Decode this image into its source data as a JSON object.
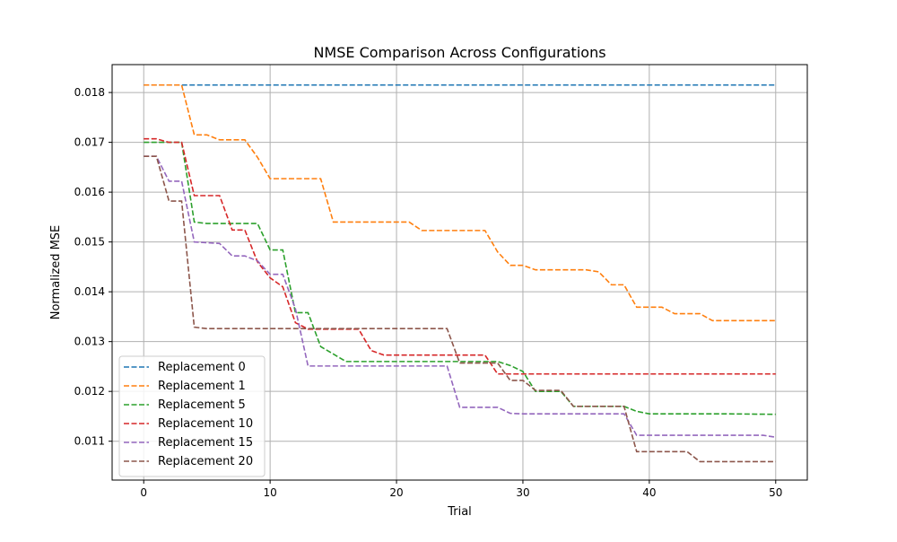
{
  "chart_data": {
    "type": "line",
    "title": "NMSE Comparison Across Configurations",
    "xlabel": "Trial",
    "ylabel": "Normalized MSE",
    "xlim": [
      -2.5,
      52.5
    ],
    "ylim": [
      0.01022,
      0.01856
    ],
    "x_ticks": [
      0,
      10,
      20,
      30,
      40,
      50
    ],
    "y_ticks": [
      0.011,
      0.012,
      0.013,
      0.014,
      0.015,
      0.016,
      0.017,
      0.018
    ],
    "grid": true,
    "legend_position": "lower-left",
    "line_style": "dashed",
    "series": [
      {
        "name": "Replacement 0",
        "color": "#1f77b4",
        "points": [
          [
            0,
            0.01815
          ],
          [
            50,
            0.01815
          ]
        ]
      },
      {
        "name": "Replacement 1",
        "color": "#ff7f0e",
        "points": [
          [
            0,
            0.01815
          ],
          [
            3,
            0.01815
          ],
          [
            4,
            0.01715
          ],
          [
            5,
            0.01715
          ],
          [
            6,
            0.01705
          ],
          [
            8,
            0.01705
          ],
          [
            9,
            0.0167
          ],
          [
            10,
            0.01627
          ],
          [
            14,
            0.01627
          ],
          [
            15,
            0.0154
          ],
          [
            21,
            0.0154
          ],
          [
            22,
            0.01523
          ],
          [
            27,
            0.01523
          ],
          [
            28,
            0.0148
          ],
          [
            29,
            0.01453
          ],
          [
            30,
            0.01453
          ],
          [
            31,
            0.01444
          ],
          [
            35,
            0.01444
          ],
          [
            36,
            0.0144
          ],
          [
            37,
            0.01414
          ],
          [
            38,
            0.01414
          ],
          [
            39,
            0.01369
          ],
          [
            41,
            0.01369
          ],
          [
            42,
            0.01356
          ],
          [
            44,
            0.01356
          ],
          [
            45,
            0.01342
          ],
          [
            50,
            0.01342
          ]
        ]
      },
      {
        "name": "Replacement 5",
        "color": "#2ca02c",
        "points": [
          [
            0,
            0.017
          ],
          [
            3,
            0.017
          ],
          [
            4,
            0.0154
          ],
          [
            5,
            0.01537
          ],
          [
            9,
            0.01537
          ],
          [
            10,
            0.01484
          ],
          [
            11,
            0.01484
          ],
          [
            12,
            0.01358
          ],
          [
            13,
            0.01358
          ],
          [
            14,
            0.0129
          ],
          [
            16,
            0.0126
          ],
          [
            28,
            0.0126
          ],
          [
            29,
            0.01252
          ],
          [
            30,
            0.0124
          ],
          [
            31,
            0.012
          ],
          [
            33,
            0.012
          ],
          [
            34,
            0.0117
          ],
          [
            38,
            0.0117
          ],
          [
            39,
            0.0116
          ],
          [
            40,
            0.01155
          ],
          [
            45,
            0.01155
          ],
          [
            46,
            0.01155
          ],
          [
            50,
            0.01154
          ]
        ]
      },
      {
        "name": "Replacement 10",
        "color": "#d62728",
        "points": [
          [
            0,
            0.01707
          ],
          [
            1,
            0.01707
          ],
          [
            2,
            0.017
          ],
          [
            3,
            0.017
          ],
          [
            4,
            0.01593
          ],
          [
            6,
            0.01593
          ],
          [
            7,
            0.01524
          ],
          [
            8,
            0.01524
          ],
          [
            9,
            0.0146
          ],
          [
            10,
            0.01428
          ],
          [
            11,
            0.0141
          ],
          [
            12,
            0.01338
          ],
          [
            13,
            0.01325
          ],
          [
            17,
            0.01325
          ],
          [
            18,
            0.01282
          ],
          [
            19,
            0.01273
          ],
          [
            27,
            0.01273
          ],
          [
            28,
            0.01235
          ],
          [
            50,
            0.01235
          ]
        ]
      },
      {
        "name": "Replacement 15",
        "color": "#9467bd",
        "points": [
          [
            0,
            0.01672
          ],
          [
            1,
            0.01672
          ],
          [
            2,
            0.01622
          ],
          [
            3,
            0.01622
          ],
          [
            4,
            0.015
          ],
          [
            6,
            0.01497
          ],
          [
            7,
            0.01472
          ],
          [
            8,
            0.01472
          ],
          [
            9,
            0.01462
          ],
          [
            10,
            0.01435
          ],
          [
            11,
            0.01435
          ],
          [
            12,
            0.01366
          ],
          [
            13,
            0.01251
          ],
          [
            24,
            0.01251
          ],
          [
            25,
            0.01168
          ],
          [
            28,
            0.01168
          ],
          [
            29,
            0.01156
          ],
          [
            30,
            0.01155
          ],
          [
            38,
            0.01155
          ],
          [
            39,
            0.01112
          ],
          [
            49,
            0.01112
          ],
          [
            50,
            0.01108
          ]
        ]
      },
      {
        "name": "Replacement 20",
        "color": "#8c564b",
        "points": [
          [
            0,
            0.01672
          ],
          [
            1,
            0.01672
          ],
          [
            2,
            0.01582
          ],
          [
            3,
            0.01582
          ],
          [
            4,
            0.01329
          ],
          [
            5,
            0.01326
          ],
          [
            24,
            0.01326
          ],
          [
            25,
            0.01257
          ],
          [
            28,
            0.01257
          ],
          [
            29,
            0.01222
          ],
          [
            30,
            0.01222
          ],
          [
            31,
            0.01202
          ],
          [
            33,
            0.01202
          ],
          [
            34,
            0.0117
          ],
          [
            38,
            0.0117
          ],
          [
            39,
            0.01079
          ],
          [
            43,
            0.01079
          ],
          [
            44,
            0.01059
          ],
          [
            50,
            0.01059
          ]
        ]
      }
    ]
  }
}
